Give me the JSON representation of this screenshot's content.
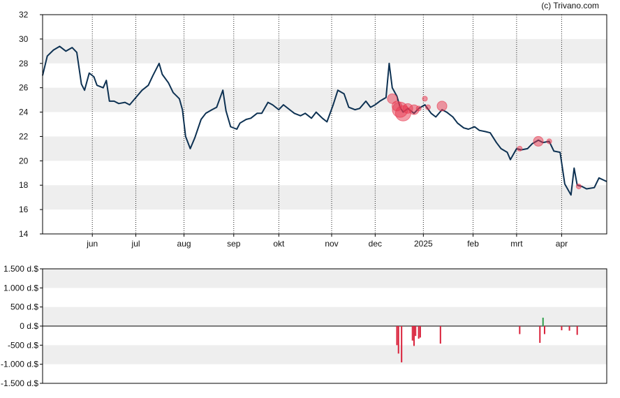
{
  "copyright": "(c) Trivano.com",
  "colors": {
    "line": "#0d3152",
    "band": "#eeeeee",
    "marker": "#e8384f",
    "buy": "#2e9e4a",
    "sell": "#d9213a",
    "axis": "#000000"
  },
  "chart_data": [
    {
      "type": "line",
      "title": "",
      "xlabel": "",
      "ylabel": "",
      "ylim": [
        14,
        32
      ],
      "yticks": [
        14,
        16,
        18,
        20,
        22,
        24,
        26,
        28,
        30,
        32
      ],
      "grid": "alternating horizontal bands, dotted vertical month lines",
      "xlim": [
        "2024-05-02",
        "2025-04-30"
      ],
      "xticks": [
        {
          "label": "jun",
          "date": "2024-06-03"
        },
        {
          "label": "jul",
          "date": "2024-07-01"
        },
        {
          "label": "aug",
          "date": "2024-08-01"
        },
        {
          "label": "sep",
          "date": "2024-09-02"
        },
        {
          "label": "okt",
          "date": "2024-10-01"
        },
        {
          "label": "nov",
          "date": "2024-11-04"
        },
        {
          "label": "dec",
          "date": "2024-12-02"
        },
        {
          "label": "2025",
          "date": "2025-01-02"
        },
        {
          "label": "feb",
          "date": "2025-02-03"
        },
        {
          "label": "mrt",
          "date": "2025-03-03"
        },
        {
          "label": "apr",
          "date": "2025-04-01"
        }
      ],
      "series": [
        {
          "points": [
            [
              "2024-05-02",
              27.0
            ],
            [
              "2024-05-05",
              28.6
            ],
            [
              "2024-05-09",
              29.1
            ],
            [
              "2024-05-13",
              29.4
            ],
            [
              "2024-05-17",
              29.0
            ],
            [
              "2024-05-21",
              29.3
            ],
            [
              "2024-05-24",
              28.9
            ],
            [
              "2024-05-27",
              26.3
            ],
            [
              "2024-05-29",
              25.8
            ],
            [
              "2024-06-01",
              27.2
            ],
            [
              "2024-06-04",
              26.9
            ],
            [
              "2024-06-06",
              26.2
            ],
            [
              "2024-06-10",
              26.0
            ],
            [
              "2024-06-12",
              26.6
            ],
            [
              "2024-06-14",
              24.9
            ],
            [
              "2024-06-17",
              24.9
            ],
            [
              "2024-06-20",
              24.7
            ],
            [
              "2024-06-24",
              24.8
            ],
            [
              "2024-06-27",
              24.6
            ],
            [
              "2024-07-01",
              25.2
            ],
            [
              "2024-07-05",
              25.8
            ],
            [
              "2024-07-09",
              26.2
            ],
            [
              "2024-07-12",
              27.0
            ],
            [
              "2024-07-16",
              28.0
            ],
            [
              "2024-07-18",
              27.1
            ],
            [
              "2024-07-22",
              26.4
            ],
            [
              "2024-07-25",
              25.6
            ],
            [
              "2024-07-29",
              25.1
            ],
            [
              "2024-07-31",
              24.2
            ],
            [
              "2024-08-02",
              22.0
            ],
            [
              "2024-08-05",
              21.0
            ],
            [
              "2024-08-08",
              21.9
            ],
            [
              "2024-08-12",
              23.4
            ],
            [
              "2024-08-15",
              23.9
            ],
            [
              "2024-08-19",
              24.2
            ],
            [
              "2024-08-22",
              24.4
            ],
            [
              "2024-08-26",
              25.8
            ],
            [
              "2024-08-28",
              24.1
            ],
            [
              "2024-08-31",
              22.8
            ],
            [
              "2024-09-04",
              22.6
            ],
            [
              "2024-09-06",
              23.1
            ],
            [
              "2024-09-10",
              23.4
            ],
            [
              "2024-09-13",
              23.5
            ],
            [
              "2024-09-17",
              23.9
            ],
            [
              "2024-09-20",
              23.9
            ],
            [
              "2024-09-24",
              24.8
            ],
            [
              "2024-09-27",
              24.6
            ],
            [
              "2024-10-01",
              24.2
            ],
            [
              "2024-10-04",
              24.6
            ],
            [
              "2024-10-08",
              24.2
            ],
            [
              "2024-10-11",
              23.9
            ],
            [
              "2024-10-15",
              23.7
            ],
            [
              "2024-10-18",
              23.9
            ],
            [
              "2024-10-22",
              23.5
            ],
            [
              "2024-10-25",
              24.0
            ],
            [
              "2024-10-29",
              23.5
            ],
            [
              "2024-11-01",
              23.2
            ],
            [
              "2024-11-05",
              24.6
            ],
            [
              "2024-11-08",
              25.8
            ],
            [
              "2024-11-12",
              25.5
            ],
            [
              "2024-11-15",
              24.4
            ],
            [
              "2024-11-19",
              24.2
            ],
            [
              "2024-11-22",
              24.3
            ],
            [
              "2024-11-26",
              24.9
            ],
            [
              "2024-11-29",
              24.4
            ],
            [
              "2024-12-02",
              24.6
            ],
            [
              "2024-12-05",
              24.9
            ],
            [
              "2024-12-09",
              25.2
            ],
            [
              "2024-12-11",
              28.0
            ],
            [
              "2024-12-13",
              26.0
            ],
            [
              "2024-12-16",
              25.3
            ],
            [
              "2024-12-18",
              24.4
            ],
            [
              "2024-12-20",
              24.0
            ],
            [
              "2024-12-23",
              24.3
            ],
            [
              "2024-12-27",
              23.9
            ],
            [
              "2024-12-30",
              24.3
            ],
            [
              "2025-01-03",
              24.6
            ],
            [
              "2025-01-07",
              23.9
            ],
            [
              "2025-01-10",
              23.6
            ],
            [
              "2025-01-14",
              24.2
            ],
            [
              "2025-01-17",
              24.0
            ],
            [
              "2025-01-21",
              23.6
            ],
            [
              "2025-01-24",
              23.1
            ],
            [
              "2025-01-28",
              22.7
            ],
            [
              "2025-01-31",
              22.6
            ],
            [
              "2025-02-04",
              22.8
            ],
            [
              "2025-02-07",
              22.5
            ],
            [
              "2025-02-11",
              22.4
            ],
            [
              "2025-02-14",
              22.3
            ],
            [
              "2025-02-18",
              21.5
            ],
            [
              "2025-02-21",
              21.0
            ],
            [
              "2025-02-25",
              20.7
            ],
            [
              "2025-02-27",
              20.1
            ],
            [
              "2025-03-03",
              21.0
            ],
            [
              "2025-03-06",
              20.9
            ],
            [
              "2025-03-10",
              21.0
            ],
            [
              "2025-03-13",
              21.4
            ],
            [
              "2025-03-17",
              21.7
            ],
            [
              "2025-03-20",
              21.5
            ],
            [
              "2025-03-24",
              21.6
            ],
            [
              "2025-03-27",
              20.8
            ],
            [
              "2025-03-31",
              20.7
            ],
            [
              "2025-04-03",
              18.1
            ],
            [
              "2025-04-07",
              17.2
            ],
            [
              "2025-04-09",
              19.4
            ],
            [
              "2025-04-11",
              18.0
            ],
            [
              "2025-04-14",
              17.9
            ],
            [
              "2025-04-17",
              17.7
            ],
            [
              "2025-04-22",
              17.8
            ],
            [
              "2025-04-25",
              18.6
            ],
            [
              "2025-04-30",
              18.3
            ]
          ]
        }
      ],
      "markers": [
        {
          "date": "2024-12-13",
          "y": 25.1,
          "size": "medium"
        },
        {
          "date": "2024-12-16",
          "y": 24.5,
          "size": "medium"
        },
        {
          "date": "2024-12-18",
          "y": 24.2,
          "size": "large"
        },
        {
          "date": "2024-12-20",
          "y": 23.9,
          "size": "large"
        },
        {
          "date": "2024-12-23",
          "y": 24.3,
          "size": "medium"
        },
        {
          "date": "2024-12-27",
          "y": 24.2,
          "size": "medium"
        },
        {
          "date": "2024-12-30",
          "y": 24.3,
          "size": "small"
        },
        {
          "date": "2025-01-03",
          "y": 25.1,
          "size": "small"
        },
        {
          "date": "2025-01-05",
          "y": 24.4,
          "size": "small"
        },
        {
          "date": "2025-01-14",
          "y": 24.5,
          "size": "medium"
        },
        {
          "date": "2025-03-05",
          "y": 21.0,
          "size": "small"
        },
        {
          "date": "2025-03-17",
          "y": 21.6,
          "size": "medium"
        },
        {
          "date": "2025-03-24",
          "y": 21.6,
          "size": "small"
        },
        {
          "date": "2025-04-12",
          "y": 17.9,
          "size": "small"
        }
      ]
    },
    {
      "type": "bar",
      "title": "",
      "xlabel": "",
      "ylabel": "",
      "ylim": [
        -1500,
        1500
      ],
      "yticks": [
        {
          "value": 1500,
          "label": "1.500 d.$"
        },
        {
          "value": 1000,
          "label": "1.000 d.$"
        },
        {
          "value": 500,
          "label": "500 d.$"
        },
        {
          "value": 0,
          "label": "0 d.$"
        },
        {
          "value": -500,
          "label": "-500 d.$"
        },
        {
          "value": -1000,
          "label": "-1.000 d.$"
        },
        {
          "value": -1500,
          "label": "-1.500 d.$"
        }
      ],
      "bars": [
        {
          "date": "2024-12-16",
          "value": -500
        },
        {
          "date": "2024-12-17",
          "value": -720
        },
        {
          "date": "2024-12-19",
          "value": -950
        },
        {
          "date": "2024-12-26",
          "value": -380
        },
        {
          "date": "2024-12-27",
          "value": -520
        },
        {
          "date": "2024-12-28",
          "value": -260
        },
        {
          "date": "2024-12-30",
          "value": -330
        },
        {
          "date": "2024-12-31",
          "value": -300
        },
        {
          "date": "2025-01-13",
          "value": -460
        },
        {
          "date": "2025-03-05",
          "value": -210
        },
        {
          "date": "2025-03-18",
          "value": -440
        },
        {
          "date": "2025-03-20",
          "value": 220
        },
        {
          "date": "2025-03-21",
          "value": -210
        },
        {
          "date": "2025-04-01",
          "value": -110
        },
        {
          "date": "2025-04-06",
          "value": -120
        },
        {
          "date": "2025-04-11",
          "value": -230
        }
      ]
    }
  ]
}
